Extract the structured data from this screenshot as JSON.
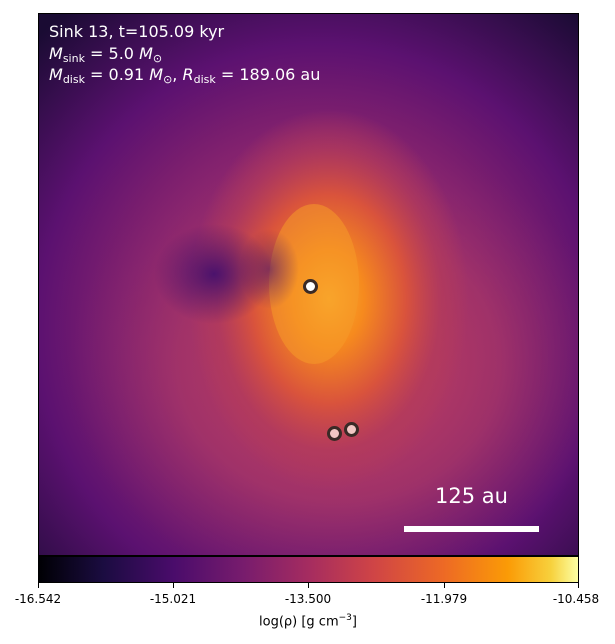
{
  "panel": {
    "sink_label": "Sink 13, t=105.09 kyr",
    "msink_symbol": "M",
    "msink_sub": "sink",
    "msink_value": "= 5.0",
    "msink_unit": "M",
    "msink_unit_sub": "⊙",
    "mdisk_symbol": "M",
    "mdisk_sub": "disk",
    "mdisk_value": "= 0.91",
    "mdisk_unit": "M",
    "mdisk_unit_sub": "⊙",
    "sep": ",",
    "rdisk_symbol": "R",
    "rdisk_sub": "disk",
    "rdisk_value": "= 189.06 au",
    "scale_label": "125 au"
  },
  "colorbar": {
    "label_prefix": "log(ρ) [g cm",
    "label_sup": "−3",
    "label_suffix": "]",
    "ticks": [
      "-16.542",
      "-15.021",
      "-13.500",
      "-11.979",
      "-10.458"
    ]
  }
}
